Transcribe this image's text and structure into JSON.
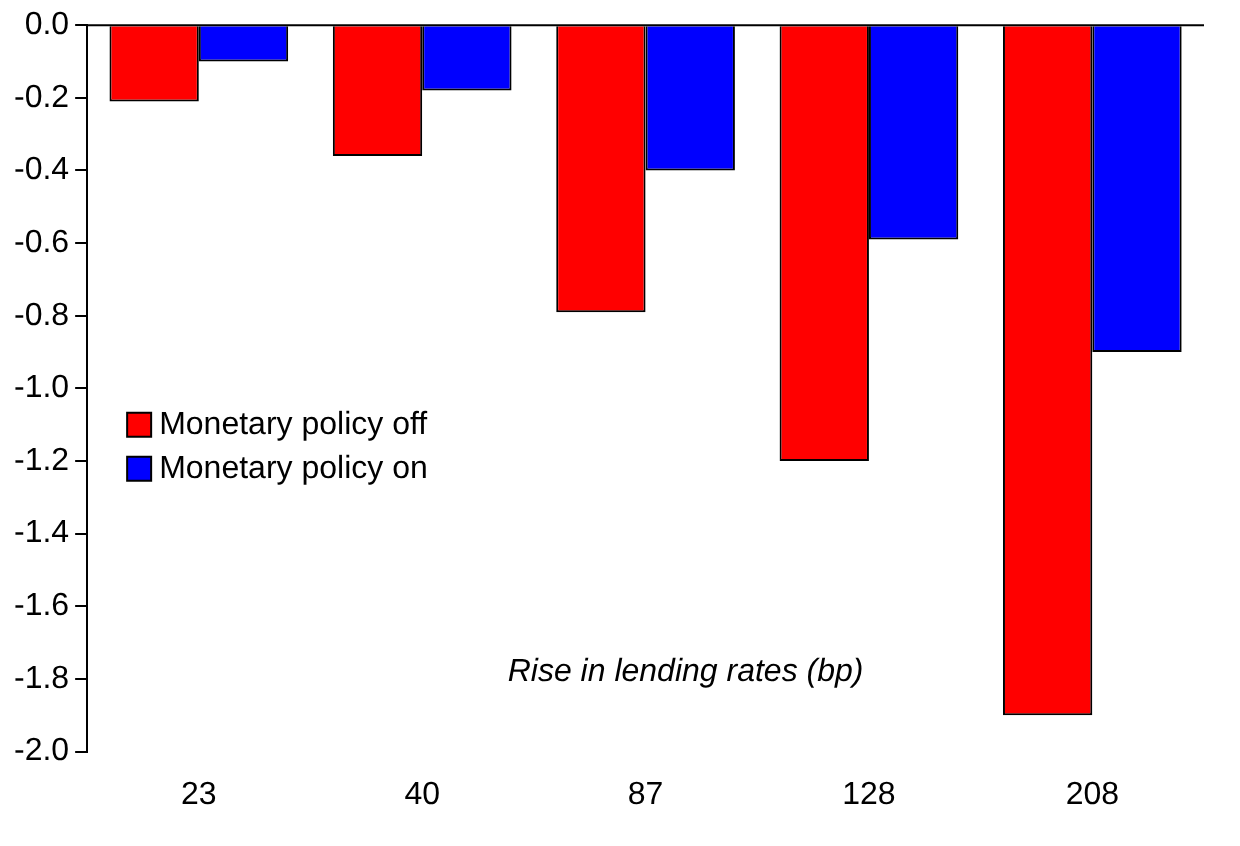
{
  "chart_data": {
    "type": "bar",
    "xlabel": "Rise in lending rates (bp)",
    "categories": [
      "23",
      "40",
      "87",
      "128",
      "208"
    ],
    "series": [
      {
        "name": "Monetary policy off",
        "color": "#ff0000",
        "values": [
          -0.21,
          -0.36,
          -0.79,
          -1.2,
          -1.9
        ]
      },
      {
        "name": "Monetary policy on",
        "color": "#0000ff",
        "values": [
          -0.1,
          -0.18,
          -0.4,
          -0.59,
          -0.9
        ]
      }
    ],
    "ylim": [
      -2,
      0
    ],
    "yticks": [
      {
        "value": -2,
        "label": "-2.0"
      },
      {
        "value": -1.8,
        "label": "-1.8"
      },
      {
        "value": -1.6,
        "label": "-1.6"
      },
      {
        "value": -1.4,
        "label": "-1.4"
      },
      {
        "value": -1.2,
        "label": "-1.2"
      },
      {
        "value": -1,
        "label": "-1.0"
      },
      {
        "value": -0.8,
        "label": "-0.8"
      },
      {
        "value": -0.6,
        "label": "-0.6"
      },
      {
        "value": -0.4,
        "label": "-0.4"
      },
      {
        "value": -0.2,
        "label": "-0.2"
      },
      {
        "value": 0,
        "label": "0.0"
      }
    ],
    "grid": false,
    "legend": "left"
  }
}
